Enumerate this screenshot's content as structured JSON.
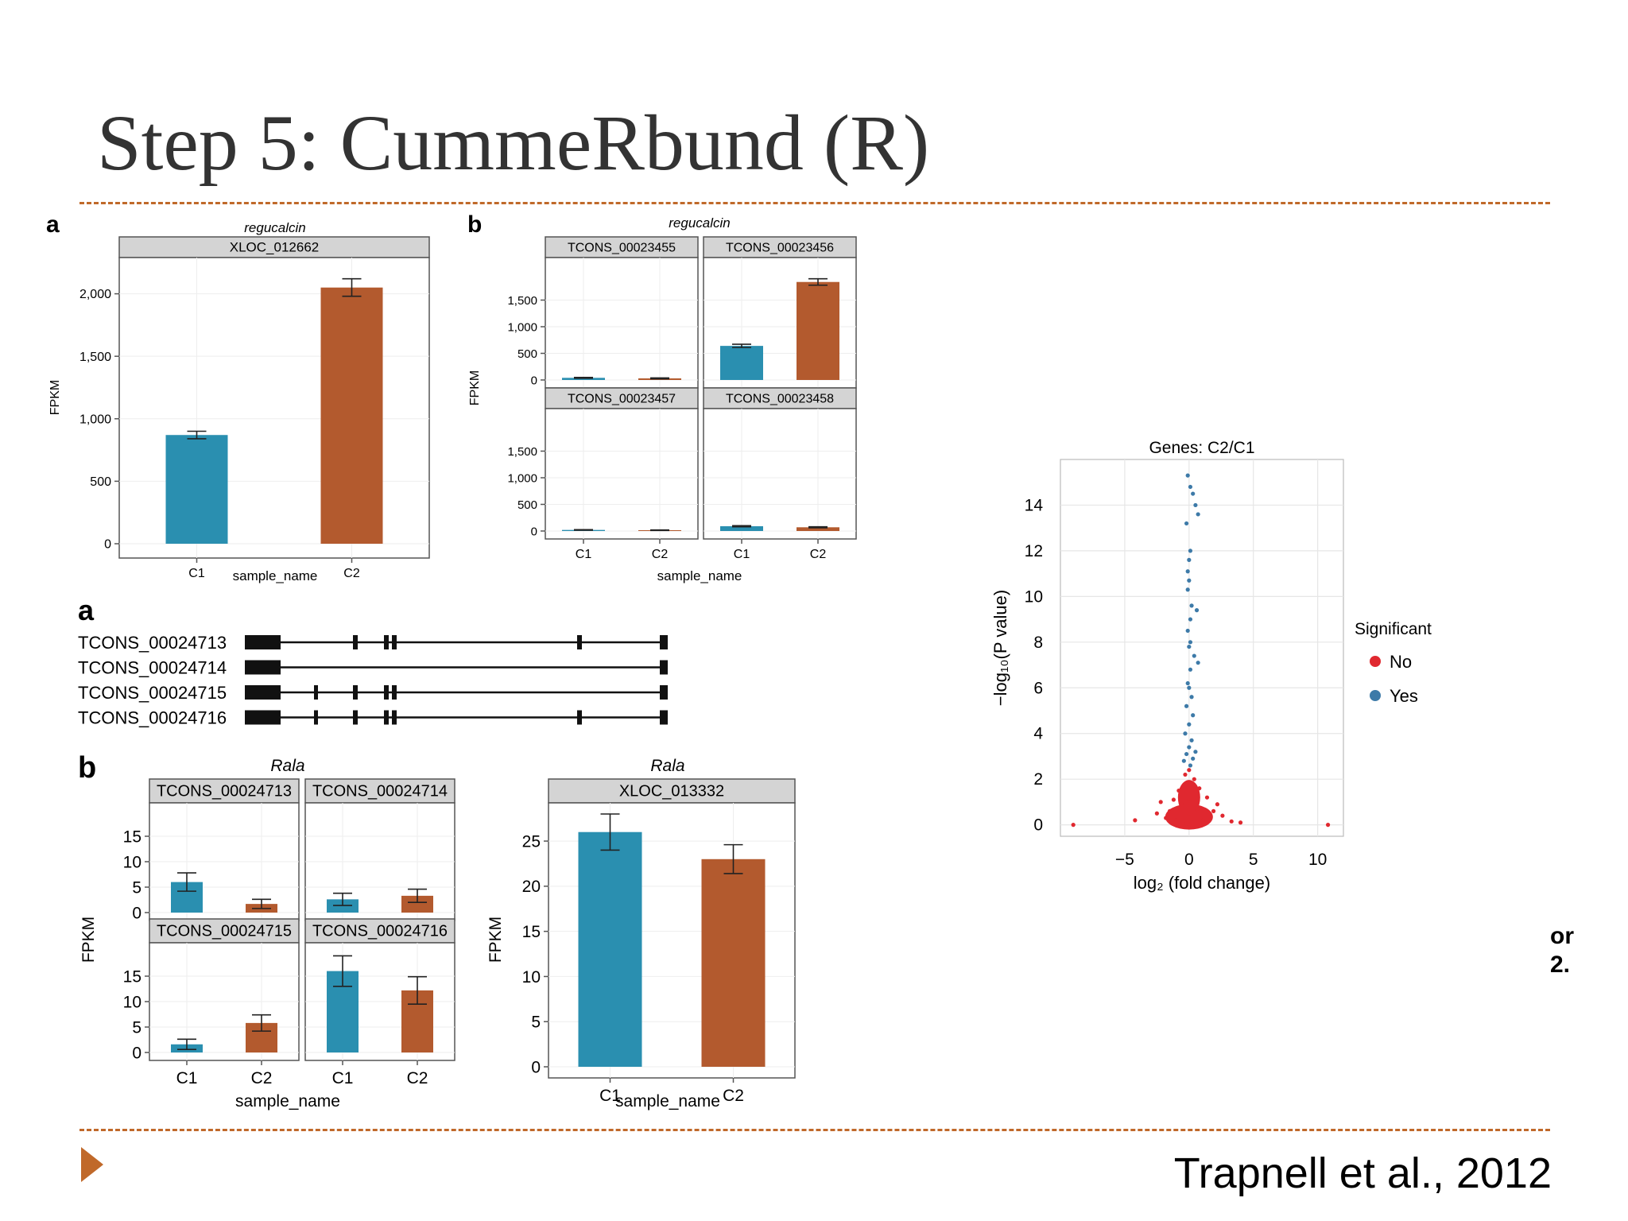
{
  "slide": {
    "title": "Step 5: CummeRbund (R)",
    "citation": "Trapnell et al., 2012",
    "cut_text": [
      "or",
      "2."
    ],
    "accent_color": "#c0692a"
  },
  "colors": {
    "C1": "#2a8fb0",
    "C2": "#b35a2e",
    "sig_no": "#e0282f",
    "sig_yes": "#3d7aa8"
  },
  "chart_data": [
    {
      "panel": "a",
      "type": "bar",
      "gene_title": "regucalcin",
      "facet": "XLOC_012662",
      "categories": [
        "C1",
        "C2"
      ],
      "values": [
        870,
        2050
      ],
      "err": [
        30,
        70
      ],
      "ylim": [
        0,
        2150
      ],
      "yticks": [
        0,
        500,
        1000,
        1500,
        2000
      ],
      "ytick_labels": [
        "0",
        "500",
        "1,000",
        "1,500",
        "2,000"
      ],
      "xlabel": "sample_name",
      "ylabel": "FPKM"
    },
    {
      "panel": "b",
      "type": "bar",
      "gene_title": "regucalcin",
      "xlabel": "sample_name",
      "ylabel": "FPKM",
      "ylim": [
        0,
        2000
      ],
      "yticks": [
        0,
        500,
        1000,
        1500
      ],
      "ytick_labels": [
        "0",
        "500",
        "1,000",
        "1,500"
      ],
      "categories": [
        "C1",
        "C2"
      ],
      "facets": [
        {
          "name": "TCONS_00023455",
          "values": [
            40,
            30
          ],
          "err": [
            8,
            8
          ]
        },
        {
          "name": "TCONS_00023456",
          "values": [
            640,
            1840
          ],
          "err": [
            30,
            60
          ]
        },
        {
          "name": "TCONS_00023457",
          "values": [
            20,
            15
          ],
          "err": [
            5,
            5
          ]
        },
        {
          "name": "TCONS_00023458",
          "values": [
            90,
            70
          ],
          "err": [
            10,
            10
          ]
        }
      ]
    },
    {
      "panel": "a",
      "type": "table",
      "description_free": true,
      "transcripts": [
        {
          "name": "TCONS_00024713",
          "exons": [
            [
              0,
              45
            ],
            [
              136,
              142
            ],
            [
              175,
              181
            ],
            [
              185,
              191
            ],
            [
              418,
              424
            ],
            [
              522,
              532
            ]
          ]
        },
        {
          "name": "TCONS_00024714",
          "exons": [
            [
              0,
              45
            ],
            [
              522,
              532
            ]
          ]
        },
        {
          "name": "TCONS_00024715",
          "exons": [
            [
              0,
              45
            ],
            [
              87,
              92
            ],
            [
              136,
              142
            ],
            [
              175,
              181
            ],
            [
              185,
              191
            ],
            [
              522,
              532
            ]
          ]
        },
        {
          "name": "TCONS_00024716",
          "exons": [
            [
              0,
              45
            ],
            [
              87,
              92
            ],
            [
              136,
              142
            ],
            [
              175,
              181
            ],
            [
              185,
              191
            ],
            [
              418,
              424
            ],
            [
              522,
              532
            ]
          ]
        }
      ]
    },
    {
      "panel": "b",
      "type": "bar",
      "gene_title": "Rala",
      "xlabel": "sample_name",
      "ylabel": "FPKM",
      "ylim": [
        0,
        20
      ],
      "yticks": [
        0,
        5,
        10,
        15
      ],
      "ytick_labels": [
        "0",
        "5",
        "10",
        "15"
      ],
      "categories": [
        "C1",
        "C2"
      ],
      "facets": [
        {
          "name": "TCONS_00024713",
          "values": [
            6,
            1.7
          ],
          "err": [
            1.8,
            0.9
          ]
        },
        {
          "name": "TCONS_00024714",
          "values": [
            2.6,
            3.3
          ],
          "err": [
            1.2,
            1.3
          ]
        },
        {
          "name": "TCONS_00024715",
          "values": [
            1.6,
            5.8
          ],
          "err": [
            1.0,
            1.6
          ]
        },
        {
          "name": "TCONS_00024716",
          "values": [
            16,
            12.2
          ],
          "err": [
            3.0,
            2.7
          ]
        }
      ]
    },
    {
      "panel": "",
      "type": "bar",
      "gene_title": "Rala",
      "facet": "XLOC_013332",
      "categories": [
        "C1",
        "C2"
      ],
      "values": [
        26,
        23
      ],
      "err": [
        2,
        1.6
      ],
      "ylim": [
        0,
        28
      ],
      "yticks": [
        0,
        5,
        10,
        15,
        20,
        25
      ],
      "ytick_labels": [
        "0",
        "5",
        "10",
        "15",
        "20",
        "25"
      ],
      "xlabel": "sample_name",
      "ylabel": "FPKM"
    },
    {
      "type": "scatter",
      "title": "Genes: C2/C1",
      "xlabel": "log₂ (fold change)",
      "ylabel": "−log₁₀(P value)",
      "xlim": [
        -10,
        12
      ],
      "ylim": [
        -0.5,
        16
      ],
      "xticks": [
        -5,
        0,
        5,
        10
      ],
      "xtick_labels": [
        "−5",
        "0",
        "5",
        "10"
      ],
      "yticks": [
        0,
        2,
        4,
        6,
        8,
        10,
        12,
        14
      ],
      "ytick_labels": [
        "0",
        "2",
        "4",
        "6",
        "8",
        "10",
        "12",
        "14"
      ],
      "legend_title": "Significant",
      "legend": [
        "No",
        "Yes"
      ],
      "legend_position": "right",
      "series": [
        {
          "name": "Yes",
          "points": [
            [
              -0.1,
              15.3
            ],
            [
              0.1,
              14.8
            ],
            [
              0.3,
              14.5
            ],
            [
              0.7,
              13.6
            ],
            [
              -0.2,
              13.2
            ],
            [
              0.5,
              14.0
            ],
            [
              -0.1,
              11.1
            ],
            [
              0.0,
              10.7
            ],
            [
              -0.1,
              10.3
            ],
            [
              0.2,
              9.6
            ],
            [
              0.6,
              9.4
            ],
            [
              0.1,
              9.0
            ],
            [
              -0.1,
              8.5
            ],
            [
              0.4,
              7.4
            ],
            [
              0.7,
              7.1
            ],
            [
              0.1,
              6.8
            ],
            [
              -0.1,
              6.2
            ],
            [
              0.2,
              5.6
            ],
            [
              -0.2,
              5.2
            ],
            [
              0.3,
              4.8
            ],
            [
              0.0,
              4.4
            ],
            [
              -0.3,
              4.0
            ],
            [
              0.2,
              3.7
            ],
            [
              0.0,
              3.4
            ],
            [
              -0.2,
              3.1
            ],
            [
              0.3,
              2.9
            ],
            [
              0.1,
              2.6
            ],
            [
              -0.4,
              2.8
            ],
            [
              0.5,
              3.2
            ],
            [
              0.0,
              6.0
            ],
            [
              0.0,
              7.8
            ],
            [
              0.1,
              12.0
            ],
            [
              0.0,
              11.6
            ],
            [
              0.1,
              8.0
            ]
          ]
        },
        {
          "name": "No",
          "points": [
            [
              -9.0,
              0.0
            ],
            [
              -4.2,
              0.2
            ],
            [
              3.3,
              0.15
            ],
            [
              4.0,
              0.1
            ],
            [
              10.8,
              0.0
            ],
            [
              -2.5,
              0.5
            ],
            [
              2.6,
              0.4
            ],
            [
              -1.8,
              0.3
            ],
            [
              1.9,
              0.6
            ],
            [
              -1.2,
              1.1
            ],
            [
              1.4,
              1.2
            ],
            [
              0.8,
              1.6
            ],
            [
              -0.8,
              1.5
            ],
            [
              -0.3,
              2.2
            ],
            [
              0.4,
              2.0
            ],
            [
              0.0,
              2.4
            ],
            [
              -0.6,
              0.9
            ],
            [
              0.6,
              0.7
            ],
            [
              -1.5,
              0.6
            ],
            [
              1.1,
              0.2
            ],
            [
              0.2,
              0.1
            ],
            [
              -0.2,
              0.05
            ],
            [
              2.2,
              0.9
            ],
            [
              -2.2,
              1.0
            ],
            [
              0.0,
              1.0
            ],
            [
              -1.0,
              0.2
            ]
          ]
        }
      ]
    }
  ]
}
